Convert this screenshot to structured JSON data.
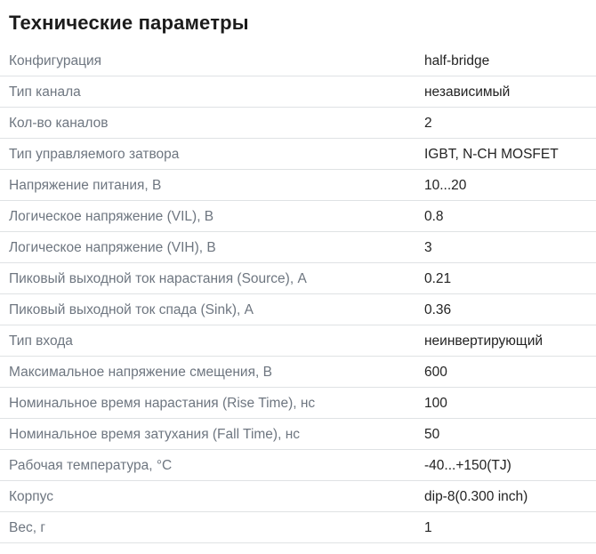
{
  "page": {
    "title": "Технические параметры"
  },
  "table": {
    "rows": [
      {
        "label": "Конфигурация",
        "value": "half-bridge"
      },
      {
        "label": "Тип канала",
        "value": "независимый"
      },
      {
        "label": "Кол-во каналов",
        "value": "2"
      },
      {
        "label": "Тип управляемого затвора",
        "value": "IGBT, N-CH MOSFET"
      },
      {
        "label": "Напряжение питания, В",
        "value": "10...20"
      },
      {
        "label": "Логическое напряжение (VIL), В",
        "value": "0.8"
      },
      {
        "label": "Логическое напряжение (VIH), В",
        "value": "3"
      },
      {
        "label": "Пиковый выходной ток нарастания (Source), А",
        "value": "0.21"
      },
      {
        "label": "Пиковый выходной ток спада (Sink), А",
        "value": "0.36"
      },
      {
        "label": "Тип входа",
        "value": "неинвертирующий"
      },
      {
        "label": "Максимальное напряжение смещения, В",
        "value": "600"
      },
      {
        "label": "Номинальное время нарастания (Rise Time), нс",
        "value": "100"
      },
      {
        "label": "Номинальное время затухания (Fall Time), нс",
        "value": "50"
      },
      {
        "label": "Рабочая температура, °С",
        "value": "-40...+150(TJ)"
      },
      {
        "label": "Корпус",
        "value": "dip-8(0.300 inch)"
      },
      {
        "label": "Вес, г",
        "value": "1"
      }
    ]
  },
  "colors": {
    "label": "#6e7680",
    "value": "#232323",
    "divider": "#dfe2e4",
    "title": "#1c1c1c",
    "background": "#ffffff"
  }
}
